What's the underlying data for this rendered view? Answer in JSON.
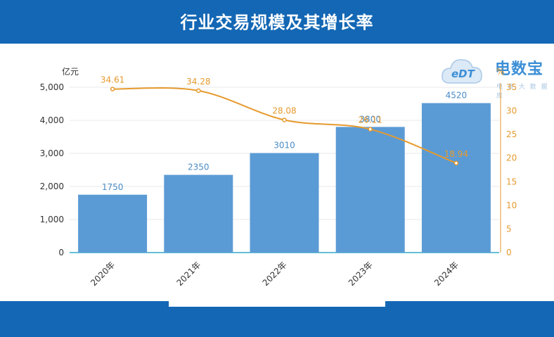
{
  "header": {
    "title": "行业交易规模及其增长率"
  },
  "logo": {
    "text": "电数宝",
    "mark": "eDT",
    "subtitle": "电 商 大 数 据 库"
  },
  "colors": {
    "band": "#1367b4",
    "bar": "#5b9bd5",
    "line": "#e69a2e"
  },
  "chart_data": {
    "type": "bar",
    "categories": [
      "2020年",
      "2021年",
      "2022年",
      "2023年",
      "2024年"
    ],
    "series": [
      {
        "type": "bar",
        "axis": "left",
        "values": [
          1750,
          2350,
          3010,
          3800,
          4520
        ],
        "labels": [
          "1750",
          "2350",
          "3010",
          "3800",
          "4520"
        ]
      },
      {
        "type": "line",
        "axis": "right",
        "values": [
          34.61,
          34.28,
          28.08,
          26.11,
          18.94
        ],
        "labels": [
          "34.61",
          "34.28",
          "28.08",
          "26.11",
          "18.94"
        ]
      }
    ],
    "yleft": {
      "unit": "亿元",
      "ylim": [
        0,
        5000
      ],
      "ticks": [
        0,
        1000,
        2000,
        3000,
        4000,
        5000
      ],
      "tick_labels": [
        "0",
        "1,000",
        "2,000",
        "3,000",
        "4,000",
        "5,000"
      ]
    },
    "yright": {
      "unit": "%",
      "ylim": [
        0,
        35
      ],
      "ticks": [
        0,
        5,
        10,
        15,
        20,
        25,
        30,
        35
      ],
      "tick_labels": [
        "0",
        "5",
        "10",
        "15",
        "20",
        "25",
        "30",
        "35"
      ]
    },
    "grid": true
  }
}
